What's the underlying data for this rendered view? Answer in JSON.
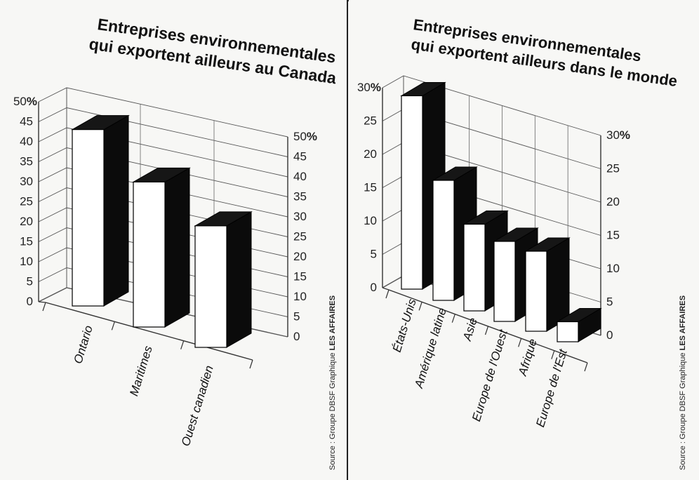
{
  "chart_data": [
    {
      "type": "bar",
      "title_lines": [
        "Entreprises environnementales",
        "qui exportent ailleurs au Canada"
      ],
      "categories": [
        "Ontario",
        "Maritimes",
        "Ouest canadien"
      ],
      "values": [
        45,
        37,
        31
      ],
      "ylim": [
        0,
        50
      ],
      "yticks": [
        0,
        5,
        10,
        15,
        20,
        25,
        30,
        35,
        40,
        45,
        50
      ],
      "percent_label": "%",
      "source_prefix": "Source : Groupe DBSF   Graphique",
      "source_brand": "LES AFFAIRES"
    },
    {
      "type": "bar",
      "title_lines": [
        "Entreprises environnementales",
        "qui exportent ailleurs dans le monde"
      ],
      "categories": [
        "États-Unis",
        "Amérique latine",
        "Asie",
        "Europe de l'Ouest",
        "Afrique",
        "Europe de l'Est"
      ],
      "values": [
        29,
        18,
        13,
        12,
        12,
        3
      ],
      "ylim": [
        0,
        30
      ],
      "yticks": [
        0,
        5,
        10,
        15,
        20,
        25,
        30
      ],
      "percent_label": "%",
      "source_prefix": "Source : Groupe DBSF   Graphique",
      "source_brand": "LES AFFAIRES"
    }
  ]
}
